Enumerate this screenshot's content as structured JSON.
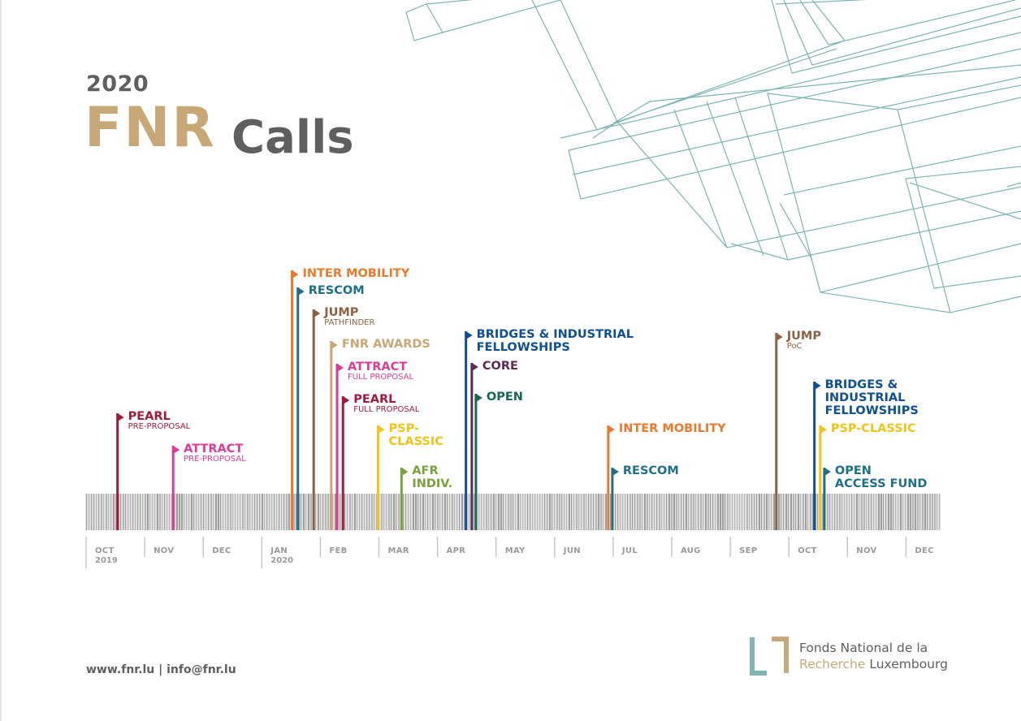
{
  "header": {
    "year": "2020",
    "title_main": "FNR",
    "title_sub": "Calls"
  },
  "colors": {
    "gold": "#c9a878",
    "grey": "#5f5f5f",
    "orange": "#ec7a2e",
    "teal": "#1f6f89",
    "brown": "#8a6347",
    "tan": "#c9a878",
    "magenta": "#e03a94",
    "crimson": "#a31a3c",
    "yellow": "#f2c318",
    "green": "#7aa33b",
    "blue": "#0f4f94",
    "purple": "#5c2a55",
    "darkgreen": "#15694f",
    "wire": "#7fb3b4"
  },
  "months": [
    {
      "label": "OCT",
      "year": "2019"
    },
    {
      "label": "NOV",
      "year": ""
    },
    {
      "label": "DEC",
      "year": ""
    },
    {
      "label": "JAN",
      "year": "2020"
    },
    {
      "label": "FEB",
      "year": ""
    },
    {
      "label": "MAR",
      "year": ""
    },
    {
      "label": "APR",
      "year": ""
    },
    {
      "label": "MAY",
      "year": ""
    },
    {
      "label": "JUN",
      "year": ""
    },
    {
      "label": "JUL",
      "year": ""
    },
    {
      "label": "AUG",
      "year": ""
    },
    {
      "label": "SEP",
      "year": ""
    },
    {
      "label": "OCT",
      "year": ""
    },
    {
      "label": "NOV",
      "year": ""
    },
    {
      "label": "DEC",
      "year": ""
    }
  ],
  "calls": [
    {
      "name": "PEARL",
      "sub": "PRE-PROPOSAL",
      "color": "crimson",
      "month": 0.55
    },
    {
      "name": "ATTRACT",
      "sub": "PRE-PROPOSAL",
      "color": "magenta",
      "month": 1.5
    },
    {
      "name": "INTER MOBILITY",
      "sub": "",
      "color": "orange",
      "month": 3.53
    },
    {
      "name": "RESCOM",
      "sub": "",
      "color": "teal",
      "month": 3.63
    },
    {
      "name": "JUMP",
      "sub": "PATHFINDER",
      "color": "brown",
      "month": 3.9
    },
    {
      "name": "FNR AWARDS",
      "sub": "",
      "color": "tan",
      "month": 4.2
    },
    {
      "name": "ATTRACT",
      "sub": "FULL PROPOSAL",
      "color": "magenta",
      "month": 4.3
    },
    {
      "name": "PEARL",
      "sub": "FULL PROPOSAL",
      "color": "crimson",
      "month": 4.4
    },
    {
      "name": "PSP- CLASSIC",
      "sub": "",
      "color": "yellow",
      "month": 5.0
    },
    {
      "name": "AFR INDIV.",
      "sub": "",
      "color": "green",
      "month": 5.4
    },
    {
      "name": "BRIDGES & INDUSTRIAL FELLOWSHIPS",
      "sub": "",
      "color": "blue",
      "month": 6.5
    },
    {
      "name": "CORE",
      "sub": "",
      "color": "purple",
      "month": 6.6
    },
    {
      "name": "OPEN",
      "sub": "",
      "color": "darkgreen",
      "month": 6.67
    },
    {
      "name": "INTER MOBILITY",
      "sub": "",
      "color": "orange",
      "month": 8.93
    },
    {
      "name": "RESCOM",
      "sub": "",
      "color": "teal",
      "month": 9.0
    },
    {
      "name": "JUMP",
      "sub": "PoC",
      "color": "brown",
      "month": 11.8
    },
    {
      "name": "BRIDGES & INDUSTRIAL FELLOWSHIPS",
      "sub": "",
      "color": "blue",
      "month": 12.45
    },
    {
      "name": "PSP-CLASSIC",
      "sub": "",
      "color": "yellow",
      "month": 12.55
    },
    {
      "name": "OPEN ACCESS FUND",
      "sub": "",
      "color": "teal",
      "month": 12.62
    }
  ],
  "footer": {
    "contact": "www.fnr.lu | info@fnr.lu",
    "logo_line1": "Fonds National de la",
    "logo_line2_accent": "Recherche",
    "logo_line2_rest": " Luxembourg"
  }
}
